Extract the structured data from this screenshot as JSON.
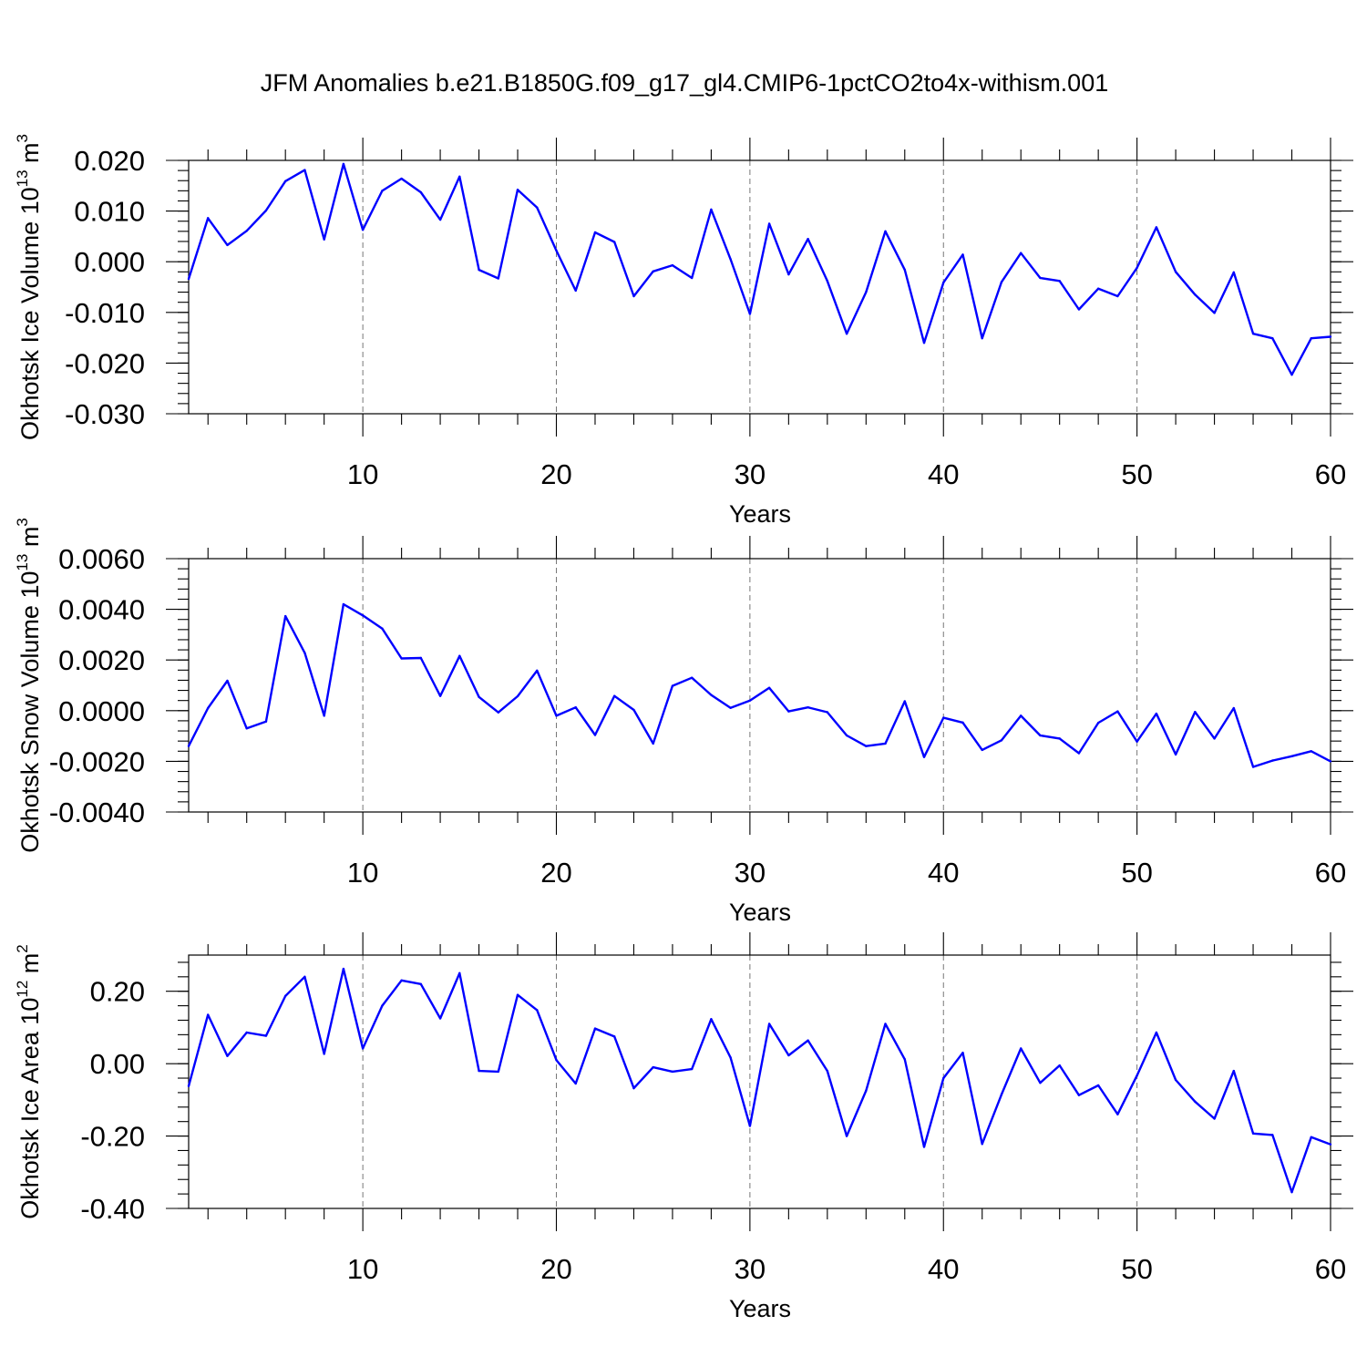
{
  "title": "JFM Anomalies b.e21.B1850G.f09_g17_gl4.CMIP6-1pctCO2to4x-withism.001",
  "chart_data": [
    {
      "type": "line",
      "ylabel": "Okhotsk Ice Volume 10",
      "ylabel_exp": "13",
      "ylabel_unit": "m",
      "ylabel_unit_exp": "3",
      "xlabel": "Years",
      "xlim": [
        1,
        60
      ],
      "ylim": [
        -0.03,
        0.02
      ],
      "xticks": [
        10,
        20,
        30,
        40,
        50,
        60
      ],
      "yticks": [
        -0.03,
        -0.02,
        -0.01,
        0.0,
        0.01,
        0.02
      ],
      "ytick_labels": [
        "-0.030",
        "-0.020",
        "-0.010",
        "0.000",
        "0.010",
        "0.020"
      ],
      "grid_x": [
        10,
        20,
        30,
        40,
        50
      ],
      "color": "#0000ff",
      "x": [
        1,
        2,
        3,
        4,
        5,
        6,
        7,
        8,
        9,
        10,
        11,
        12,
        13,
        14,
        15,
        16,
        17,
        18,
        19,
        20,
        21,
        22,
        23,
        24,
        25,
        26,
        27,
        28,
        29,
        30,
        31,
        32,
        33,
        34,
        35,
        36,
        37,
        38,
        39,
        40,
        41,
        42,
        43,
        44,
        45,
        46,
        47,
        48,
        49,
        50,
        51,
        52,
        53,
        54,
        55,
        56,
        57,
        58,
        59,
        60
      ],
      "values": [
        -0.0034,
        0.0086,
        0.0033,
        0.0061,
        0.0101,
        0.0159,
        0.0181,
        0.0044,
        0.0193,
        0.0063,
        0.014,
        0.0164,
        0.0137,
        0.0083,
        0.0168,
        -0.0016,
        -0.0033,
        0.0142,
        0.0107,
        0.0022,
        -0.0057,
        0.0058,
        0.0039,
        -0.0068,
        -0.0019,
        -0.0007,
        -0.0032,
        0.0103,
        0.0005,
        -0.0103,
        0.0075,
        -0.0025,
        0.0045,
        -0.0038,
        -0.0142,
        -0.006,
        0.006,
        -0.0016,
        -0.016,
        -0.0041,
        0.0014,
        -0.0151,
        -0.004,
        0.0017,
        -0.0032,
        -0.0038,
        -0.0094,
        -0.0053,
        -0.0068,
        -0.0012,
        0.0068,
        -0.002,
        -0.0065,
        -0.0101,
        -0.0021,
        -0.0142,
        -0.0151,
        -0.0223,
        -0.0151,
        -0.0148
      ]
    },
    {
      "type": "line",
      "ylabel": "Okhotsk Snow Volume 10",
      "ylabel_exp": "13",
      "ylabel_unit": "m",
      "ylabel_unit_exp": "3",
      "xlabel": "Years",
      "xlim": [
        1,
        60
      ],
      "ylim": [
        -0.004,
        0.006
      ],
      "xticks": [
        10,
        20,
        30,
        40,
        50,
        60
      ],
      "yticks": [
        -0.004,
        -0.002,
        0.0,
        0.002,
        0.004,
        0.006
      ],
      "ytick_labels": [
        "-0.0040",
        "-0.0020",
        "0.0000",
        "0.0020",
        "0.0040",
        "0.0060"
      ],
      "grid_x": [
        10,
        20,
        30,
        40,
        50
      ],
      "color": "#0000ff",
      "x": [
        1,
        2,
        3,
        4,
        5,
        6,
        7,
        8,
        9,
        10,
        11,
        12,
        13,
        14,
        15,
        16,
        17,
        18,
        19,
        20,
        21,
        22,
        23,
        24,
        25,
        26,
        27,
        28,
        29,
        30,
        31,
        32,
        33,
        34,
        35,
        36,
        37,
        38,
        39,
        40,
        41,
        42,
        43,
        44,
        45,
        46,
        47,
        48,
        49,
        50,
        51,
        52,
        53,
        54,
        55,
        56,
        57,
        58,
        59,
        60
      ],
      "values": [
        -0.0014,
        0.0001,
        0.00118,
        -0.0007,
        -0.00043,
        0.00373,
        0.00228,
        -0.0002,
        0.0042,
        0.00376,
        0.00324,
        0.00206,
        0.00208,
        0.00058,
        0.00216,
        0.00054,
        -7e-05,
        0.00057,
        0.00158,
        -0.0002,
        0.00013,
        -0.00096,
        0.00058,
        3e-05,
        -0.0013,
        0.00098,
        0.0013,
        0.00062,
        0.00011,
        0.0004,
        0.0009,
        -3e-05,
        0.00013,
        -6e-05,
        -0.00098,
        -0.0014,
        -0.0013,
        0.00037,
        -0.00183,
        -0.00028,
        -0.00047,
        -0.00155,
        -0.00117,
        -0.0002,
        -0.00098,
        -0.0011,
        -0.00168,
        -0.00048,
        -3e-05,
        -0.00122,
        -0.00012,
        -0.00173,
        -5e-05,
        -0.0011,
        0.0001,
        -0.00222,
        -0.00197,
        -0.0018,
        -0.0016,
        -0.002
      ]
    },
    {
      "type": "line",
      "ylabel": "Okhotsk Ice Area 10",
      "ylabel_exp": "12",
      "ylabel_unit": "m",
      "ylabel_unit_exp": "2",
      "xlabel": "Years",
      "xlim": [
        1,
        60
      ],
      "ylim": [
        -0.4,
        0.3
      ],
      "xticks": [
        10,
        20,
        30,
        40,
        50,
        60
      ],
      "yticks": [
        -0.4,
        -0.2,
        0.0,
        0.2
      ],
      "ytick_labels": [
        "-0.40",
        "-0.20",
        "0.00",
        "0.20"
      ],
      "grid_x": [
        10,
        20,
        30,
        40,
        50
      ],
      "color": "#0000ff",
      "x": [
        1,
        2,
        3,
        4,
        5,
        6,
        7,
        8,
        9,
        10,
        11,
        12,
        13,
        14,
        15,
        16,
        17,
        18,
        19,
        20,
        21,
        22,
        23,
        24,
        25,
        26,
        27,
        28,
        29,
        30,
        31,
        32,
        33,
        34,
        35,
        36,
        37,
        38,
        39,
        40,
        41,
        42,
        43,
        44,
        45,
        46,
        47,
        48,
        49,
        50,
        51,
        52,
        53,
        54,
        55,
        56,
        57,
        58,
        59,
        60
      ],
      "values": [
        -0.062,
        0.135,
        0.021,
        0.086,
        0.077,
        0.187,
        0.24,
        0.027,
        0.262,
        0.042,
        0.16,
        0.23,
        0.22,
        0.125,
        0.25,
        -0.02,
        -0.022,
        0.19,
        0.148,
        0.01,
        -0.055,
        0.097,
        0.075,
        -0.068,
        -0.01,
        -0.022,
        -0.015,
        0.123,
        0.017,
        -0.172,
        0.11,
        0.023,
        0.064,
        -0.02,
        -0.2,
        -0.075,
        0.11,
        0.012,
        -0.23,
        -0.04,
        0.03,
        -0.222,
        -0.085,
        0.042,
        -0.053,
        -0.005,
        -0.087,
        -0.06,
        -0.14,
        -0.033,
        0.086,
        -0.045,
        -0.105,
        -0.152,
        -0.02,
        -0.193,
        -0.197,
        -0.355,
        -0.203,
        -0.223
      ]
    }
  ]
}
